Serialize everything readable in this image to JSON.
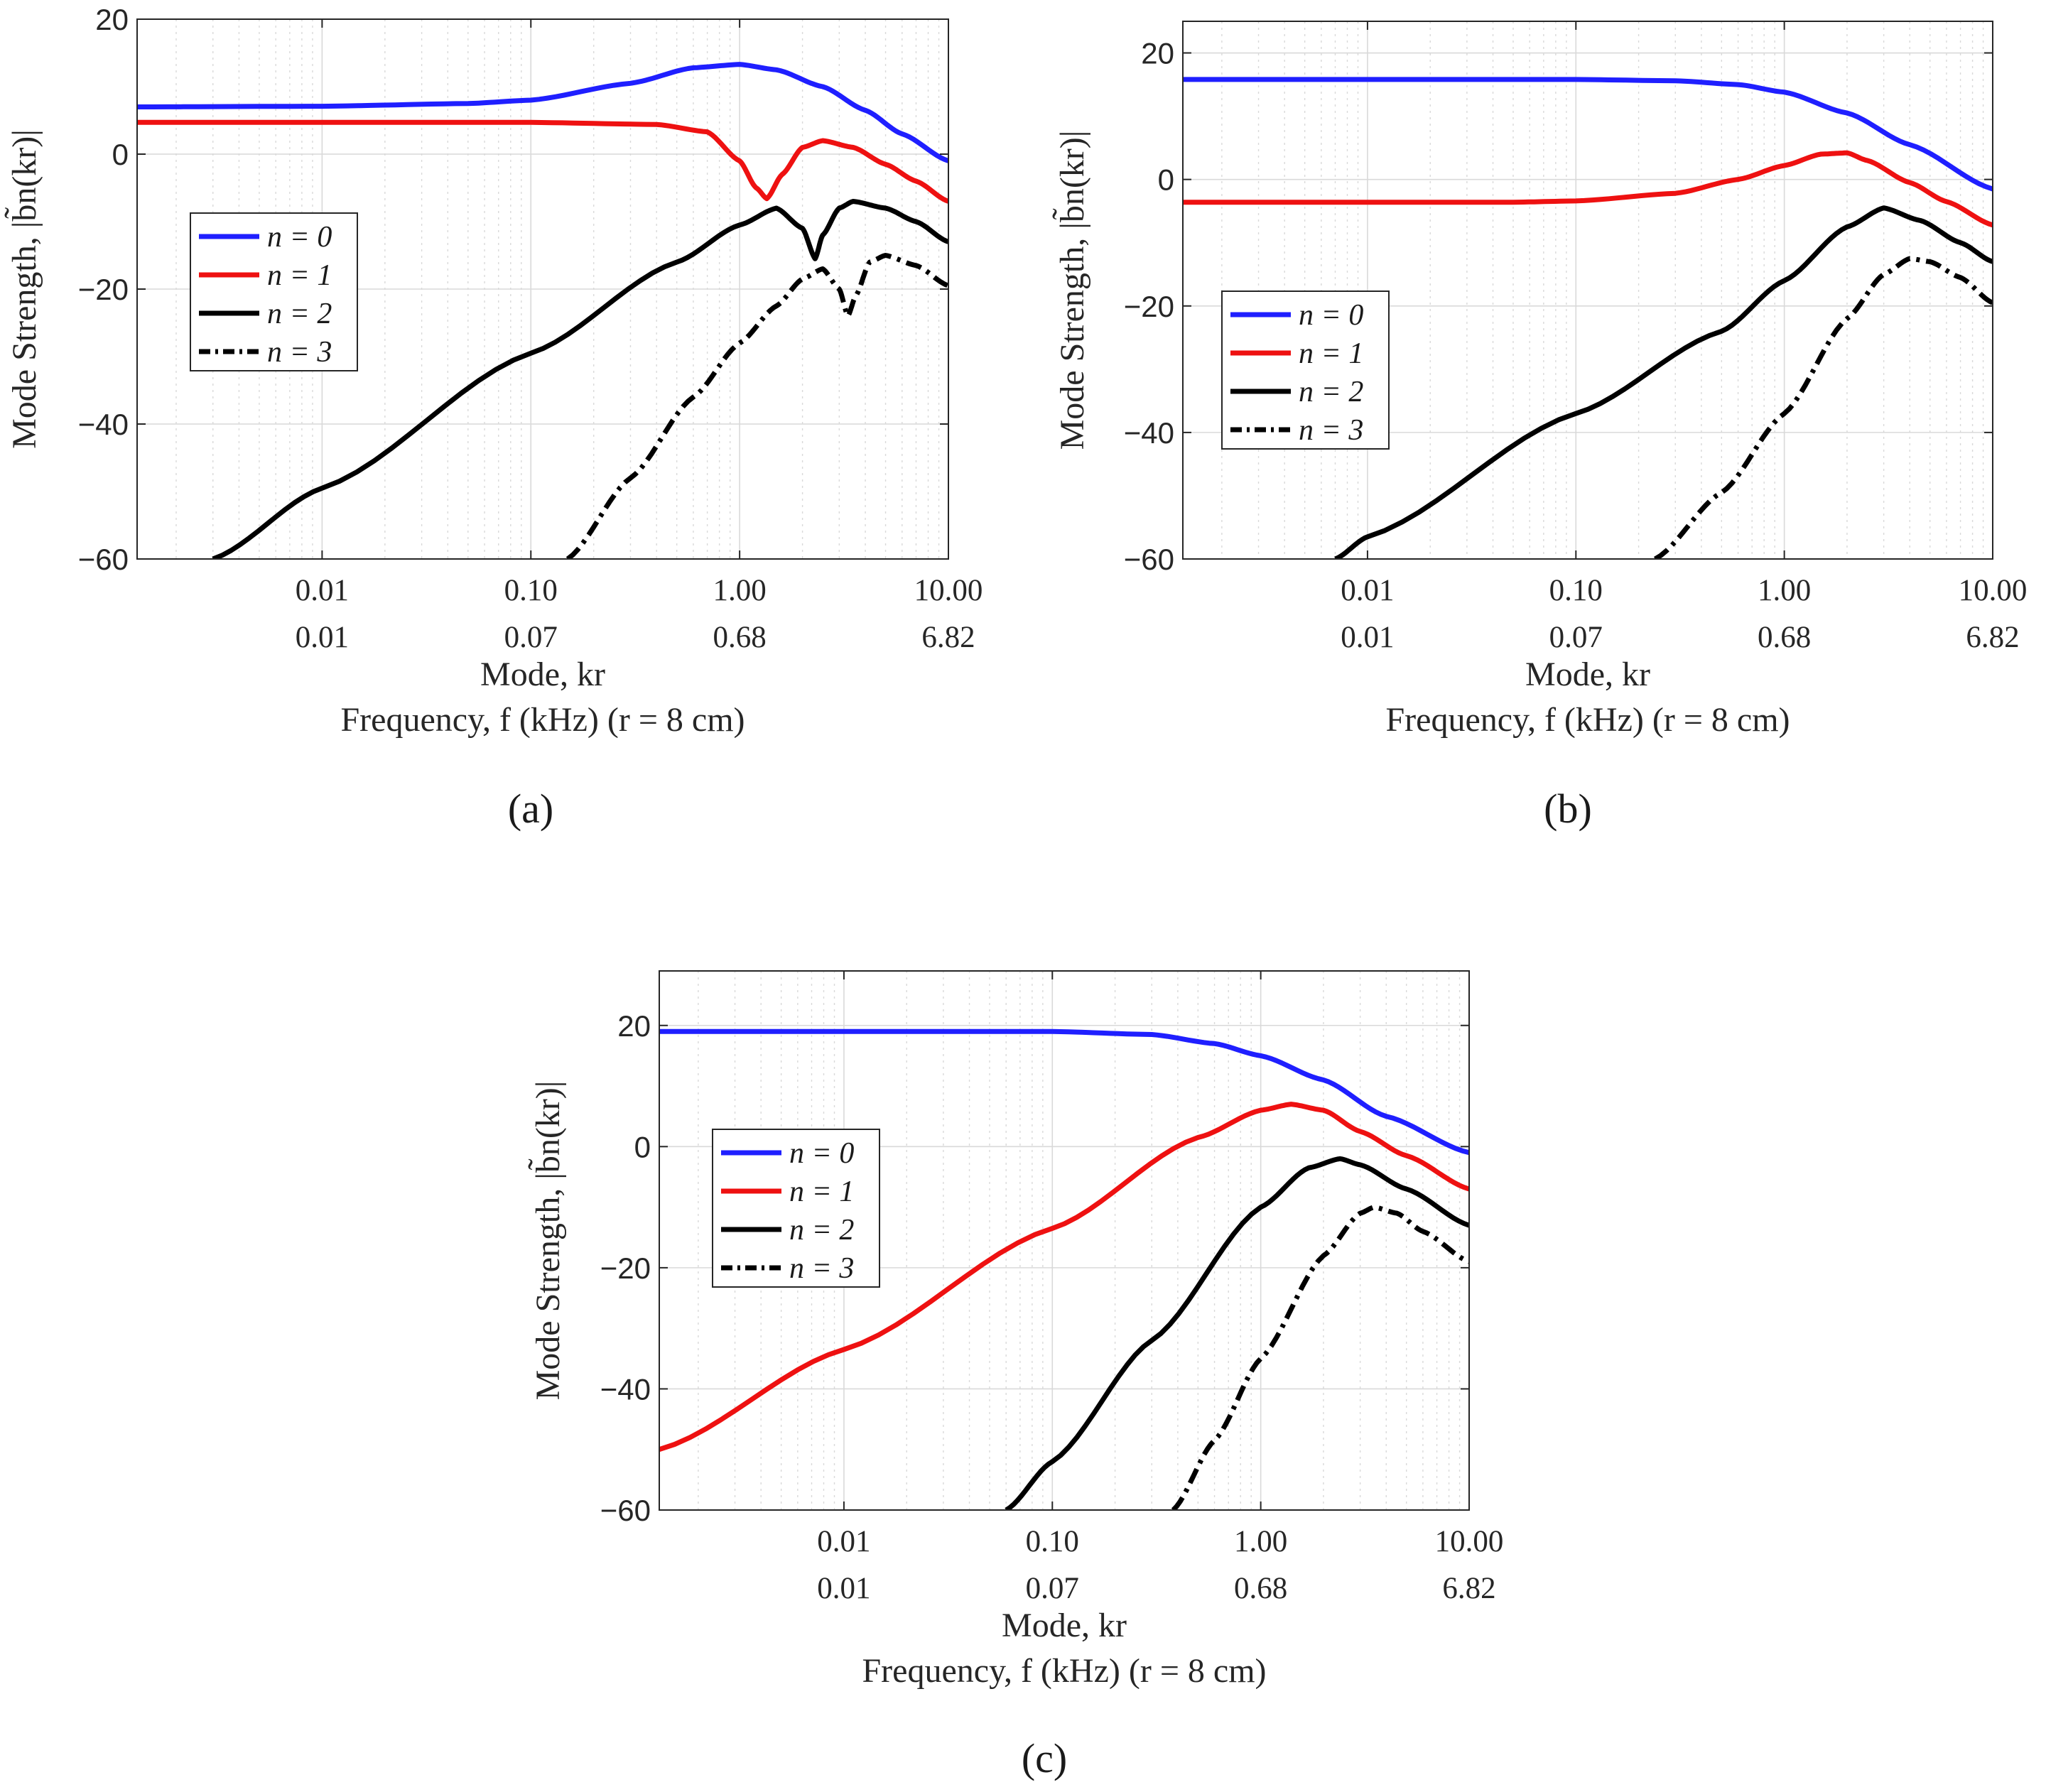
{
  "figure": {
    "panel_labels": [
      "(a)",
      "(b)",
      "(c)"
    ]
  },
  "axes": {
    "ylabel": "Mode Strength, |b̃n(kr)|",
    "xlabel_mode": "Mode, kr",
    "xlabel_freq": "Frequency, f (kHz) (r = 8 cm)",
    "kr_ticks": [
      0.01,
      0.1,
      1,
      10
    ],
    "kr_tick_labels": [
      "0.01",
      "0.10",
      "1.00",
      "10.00"
    ],
    "freq_tick_labels": [
      "0.01",
      "0.07",
      "0.68",
      "6.82"
    ]
  },
  "legend": {
    "entries": [
      "n = 0",
      "n = 1",
      "n = 2",
      "n = 3"
    ]
  },
  "colors": {
    "n0": "#1f1fff",
    "n1": "#ee1111",
    "n2": "#000000",
    "n3": "#000000"
  },
  "chart_data": [
    {
      "type": "line",
      "panel": "(a)",
      "title": "",
      "xscale": "log",
      "xlim": [
        0.0013,
        10
      ],
      "ylim": [
        -60,
        20
      ],
      "y_ticks": [
        -60,
        -40,
        -20,
        0,
        20
      ],
      "y_tick_labels": [
        "−60",
        "−40",
        "−20",
        "0",
        "20"
      ],
      "xlabel": "Mode, kr",
      "xlabel2": "Frequency, f (kHz) (r = 8 cm)",
      "ylabel": "Mode Strength, |b̃n(kr)|",
      "legend_position": "middle-left",
      "series": [
        {
          "name": "n = 0",
          "style": "solid",
          "x": [
            0.0013,
            0.01,
            0.05,
            0.1,
            0.3,
            0.6,
            1.0,
            1.5,
            2.5,
            4,
            6,
            10
          ],
          "y": [
            7,
            7.1,
            7.5,
            8,
            10.5,
            12.8,
            13.3,
            12.5,
            10,
            6.5,
            3,
            -1
          ]
        },
        {
          "name": "n = 1",
          "style": "solid",
          "x": [
            0.0013,
            0.01,
            0.1,
            0.4,
            0.7,
            1.0,
            1.2,
            1.35,
            1.6,
            2.0,
            2.5,
            3.5,
            5,
            7,
            10
          ],
          "y": [
            4.7,
            4.7,
            4.7,
            4.4,
            3.3,
            -1,
            -5,
            -6.6,
            -3,
            1,
            2,
            1,
            -1.5,
            -4,
            -7
          ]
        },
        {
          "name": "n = 2",
          "style": "solid",
          "x": [
            0.003,
            0.01,
            0.1,
            0.5,
            1.0,
            1.5,
            2.0,
            2.3,
            2.5,
            3.0,
            3.5,
            5,
            7,
            10
          ],
          "y": [
            -60,
            -49.5,
            -29.5,
            -16,
            -10.5,
            -8,
            -11,
            -15.5,
            -12,
            -8,
            -7,
            -8,
            -10,
            -13
          ]
        },
        {
          "name": "n = 3",
          "style": "dashdot",
          "x": [
            0.15,
            0.3,
            0.6,
            1.0,
            1.5,
            2.0,
            2.5,
            3.0,
            3.3,
            3.6,
            4.2,
            5,
            7,
            10
          ],
          "y": [
            -60,
            -48,
            -36,
            -28,
            -22.5,
            -18.5,
            -17,
            -20,
            -24,
            -21,
            -16,
            -15,
            -16.5,
            -19.5
          ]
        }
      ]
    },
    {
      "type": "line",
      "panel": "(b)",
      "title": "",
      "xscale": "log",
      "xlim": [
        0.0013,
        10
      ],
      "ylim": [
        -60,
        25
      ],
      "y_ticks": [
        -60,
        -40,
        -20,
        0,
        20
      ],
      "y_tick_labels": [
        "−60",
        "−40",
        "−20",
        "0",
        "20"
      ],
      "xlabel": "Mode, kr",
      "xlabel2": "Frequency, f (kHz) (r = 8 cm)",
      "ylabel": "Mode Strength, |b̃n(kr)|",
      "legend_position": "middle-left",
      "series": [
        {
          "name": "n = 0",
          "style": "solid",
          "x": [
            0.0013,
            0.1,
            0.3,
            0.6,
            1.0,
            2.0,
            4.0,
            10
          ],
          "y": [
            15.8,
            15.8,
            15.6,
            15,
            13.8,
            10.5,
            5.5,
            -1.5
          ]
        },
        {
          "name": "n = 1",
          "style": "solid",
          "x": [
            0.0013,
            0.05,
            0.1,
            0.3,
            0.6,
            1.0,
            1.5,
            2.0,
            2.5,
            4.0,
            6.0,
            10
          ],
          "y": [
            -3.6,
            -3.6,
            -3.4,
            -2.2,
            0,
            2.2,
            4,
            4.2,
            3,
            -0.5,
            -3.5,
            -7.2
          ]
        },
        {
          "name": "n = 2",
          "style": "solid",
          "x": [
            0.007,
            0.01,
            0.1,
            0.5,
            1.0,
            2.0,
            3.0,
            4.5,
            7.0,
            10
          ],
          "y": [
            -60,
            -56.5,
            -37,
            -24,
            -16,
            -7.5,
            -4.5,
            -6.5,
            -10,
            -13
          ]
        },
        {
          "name": "n = 3",
          "style": "dashdot",
          "x": [
            0.24,
            0.5,
            1.0,
            2.0,
            3.0,
            4.0,
            5.0,
            7.0,
            10
          ],
          "y": [
            -60,
            -49.5,
            -37,
            -22,
            -15,
            -12.5,
            -13,
            -15.5,
            -19.5
          ]
        }
      ]
    },
    {
      "type": "line",
      "panel": "(c)",
      "title": "",
      "xscale": "log",
      "xlim": [
        0.0013,
        10
      ],
      "ylim": [
        -60,
        29
      ],
      "y_ticks": [
        -60,
        -40,
        -20,
        0,
        20
      ],
      "y_tick_labels": [
        "−60",
        "−40",
        "−20",
        "0",
        "20"
      ],
      "xlabel": "Mode, kr",
      "xlabel2": "Frequency, f (kHz) (r = 8 cm)",
      "ylabel": "Mode Strength, |b̃n(kr)|",
      "legend_position": "middle-left",
      "series": [
        {
          "name": "n = 0",
          "style": "solid",
          "x": [
            0.0013,
            0.1,
            0.3,
            0.6,
            1.0,
            2.0,
            4.0,
            10
          ],
          "y": [
            19,
            19,
            18.5,
            17,
            15,
            11,
            5,
            -1
          ]
        },
        {
          "name": "n = 1",
          "style": "solid",
          "x": [
            0.0013,
            0.01,
            0.1,
            0.5,
            1.0,
            1.4,
            2.0,
            3.0,
            5.0,
            10
          ],
          "y": [
            -50,
            -33.5,
            -13.5,
            1.5,
            6,
            7,
            6,
            2.5,
            -1.5,
            -7
          ]
        },
        {
          "name": "n = 2",
          "style": "solid",
          "x": [
            0.06,
            0.1,
            0.3,
            1.0,
            1.7,
            2.4,
            3.0,
            5.0,
            10
          ],
          "y": [
            -60,
            -52,
            -32,
            -10,
            -3.5,
            -2,
            -3,
            -7,
            -13
          ]
        },
        {
          "name": "n = 3",
          "style": "dashdot",
          "x": [
            0.38,
            0.6,
            1.0,
            2.0,
            3.0,
            3.5,
            4.5,
            6.0,
            10
          ],
          "y": [
            -60,
            -48.5,
            -35,
            -18,
            -11,
            -10,
            -11,
            -14,
            -19
          ]
        }
      ]
    }
  ]
}
